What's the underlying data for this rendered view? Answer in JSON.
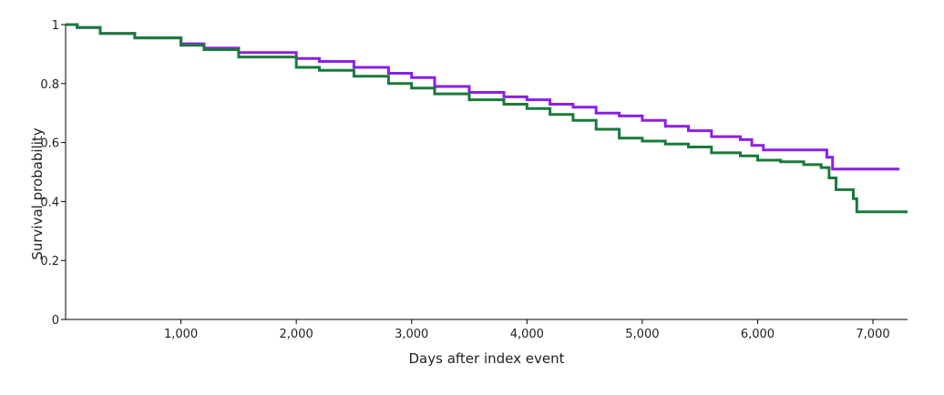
{
  "chart_data": {
    "type": "line",
    "title": "",
    "xlabel": "Days after index event",
    "ylabel": "Survival probability",
    "xlim": [
      0,
      7300
    ],
    "ylim": [
      0,
      1
    ],
    "x_ticks": [
      1000,
      2000,
      3000,
      4000,
      5000,
      6000,
      7000
    ],
    "x_tick_labels": [
      "1,000",
      "2,000",
      "3,000",
      "4,000",
      "5,000",
      "6,000",
      "7,000"
    ],
    "y_ticks": [
      0,
      0.2,
      0.4,
      0.6,
      0.8,
      1
    ],
    "y_tick_labels": [
      "0",
      "0.2",
      "0.4",
      "0.6",
      "0.8",
      "1"
    ],
    "grid": false,
    "legend": "none",
    "step": true,
    "series": [
      {
        "color": "#8b1fe6",
        "points": [
          [
            0,
            1.0
          ],
          [
            100,
            0.99
          ],
          [
            300,
            0.97
          ],
          [
            600,
            0.955
          ],
          [
            1000,
            0.935
          ],
          [
            1200,
            0.92
          ],
          [
            1500,
            0.905
          ],
          [
            2000,
            0.885
          ],
          [
            2200,
            0.875
          ],
          [
            2500,
            0.855
          ],
          [
            2800,
            0.835
          ],
          [
            3000,
            0.82
          ],
          [
            3200,
            0.79
          ],
          [
            3500,
            0.77
          ],
          [
            3800,
            0.755
          ],
          [
            4000,
            0.745
          ],
          [
            4200,
            0.73
          ],
          [
            4400,
            0.72
          ],
          [
            4600,
            0.7
          ],
          [
            4800,
            0.69
          ],
          [
            5000,
            0.675
          ],
          [
            5200,
            0.655
          ],
          [
            5400,
            0.64
          ],
          [
            5600,
            0.62
          ],
          [
            5850,
            0.61
          ],
          [
            5950,
            0.59
          ],
          [
            6050,
            0.575
          ],
          [
            6250,
            0.575
          ],
          [
            6550,
            0.575
          ],
          [
            6600,
            0.55
          ],
          [
            6650,
            0.51
          ],
          [
            7000,
            0.51
          ],
          [
            7230,
            0.51
          ]
        ]
      },
      {
        "color": "#1a7a3a",
        "points": [
          [
            0,
            1.0
          ],
          [
            100,
            0.99
          ],
          [
            300,
            0.97
          ],
          [
            600,
            0.955
          ],
          [
            1000,
            0.93
          ],
          [
            1200,
            0.915
          ],
          [
            1500,
            0.89
          ],
          [
            2000,
            0.855
          ],
          [
            2200,
            0.845
          ],
          [
            2500,
            0.825
          ],
          [
            2800,
            0.8
          ],
          [
            3000,
            0.785
          ],
          [
            3200,
            0.765
          ],
          [
            3500,
            0.745
          ],
          [
            3800,
            0.73
          ],
          [
            4000,
            0.715
          ],
          [
            4200,
            0.695
          ],
          [
            4400,
            0.675
          ],
          [
            4600,
            0.645
          ],
          [
            4800,
            0.615
          ],
          [
            5000,
            0.605
          ],
          [
            5200,
            0.595
          ],
          [
            5400,
            0.585
          ],
          [
            5600,
            0.565
          ],
          [
            5850,
            0.555
          ],
          [
            6000,
            0.54
          ],
          [
            6200,
            0.535
          ],
          [
            6400,
            0.525
          ],
          [
            6550,
            0.515
          ],
          [
            6620,
            0.48
          ],
          [
            6680,
            0.44
          ],
          [
            6830,
            0.41
          ],
          [
            6860,
            0.365
          ],
          [
            7050,
            0.365
          ],
          [
            7300,
            0.365
          ]
        ]
      }
    ]
  }
}
